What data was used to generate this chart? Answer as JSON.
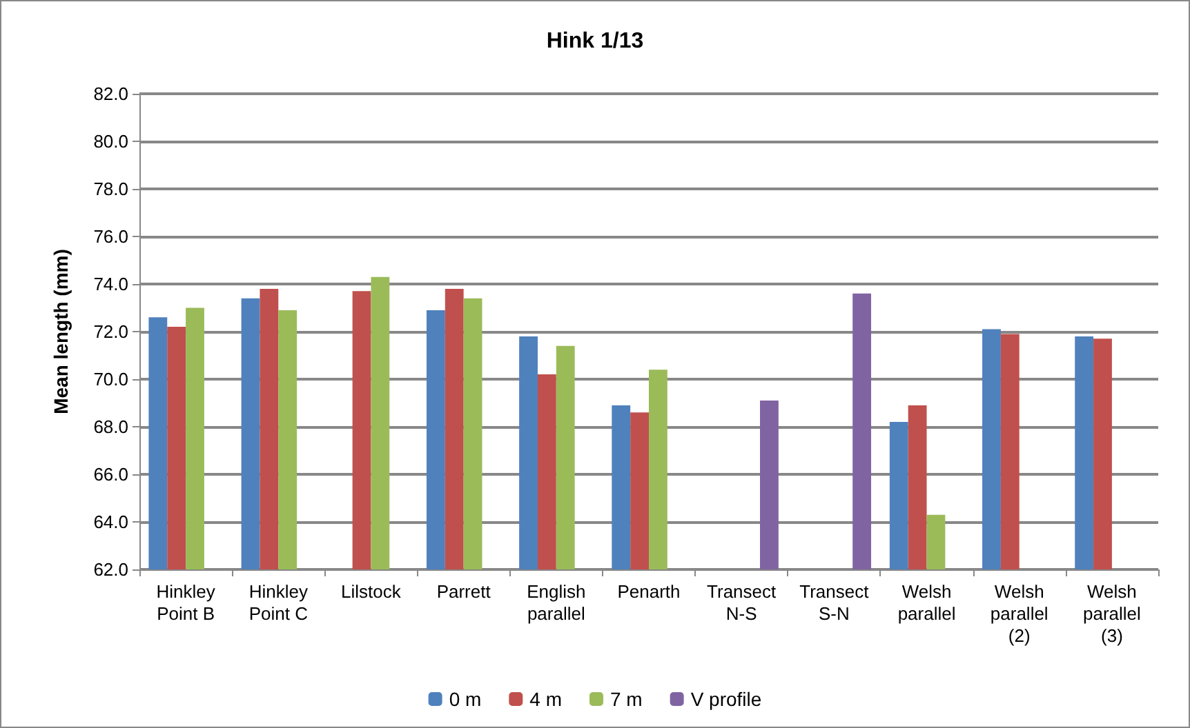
{
  "chart_data": {
    "type": "bar",
    "title": "Hink 1/13",
    "ylabel": "Mean length (mm)",
    "categories": [
      "Hinkley\nPoint B",
      "Hinkley\nPoint C",
      "Lilstock",
      "Parrett",
      "English\nparallel",
      "Penarth",
      "Transect\nN-S",
      "Transect\nS-N",
      "Welsh\nparallel",
      "Welsh\nparallel\n(2)",
      "Welsh\nparallel\n(3)"
    ],
    "series": [
      {
        "name": "0 m",
        "color": "#4f81bd",
        "values": [
          72.6,
          73.4,
          null,
          72.9,
          71.8,
          68.9,
          null,
          null,
          68.2,
          72.1,
          71.8
        ]
      },
      {
        "name": "4 m",
        "color": "#c0504d",
        "values": [
          72.2,
          73.8,
          73.7,
          73.8,
          70.2,
          68.6,
          null,
          null,
          68.9,
          71.9,
          71.7
        ]
      },
      {
        "name": "7 m",
        "color": "#9bbb59",
        "values": [
          73.0,
          72.9,
          74.3,
          73.4,
          71.4,
          70.4,
          null,
          null,
          64.3,
          null,
          null
        ]
      },
      {
        "name": "V profile",
        "color": "#8064a2",
        "values": [
          null,
          null,
          null,
          null,
          null,
          null,
          69.1,
          73.6,
          null,
          null,
          null
        ]
      }
    ],
    "ylim": [
      62,
      82
    ],
    "yticks": [
      {
        "value": 62,
        "label": "62.0"
      },
      {
        "value": 64,
        "label": "64.0"
      },
      {
        "value": 66,
        "label": "66.0"
      },
      {
        "value": 68,
        "label": "68.0"
      },
      {
        "value": 70,
        "label": "70.0"
      },
      {
        "value": 72,
        "label": "72.0"
      },
      {
        "value": 74,
        "label": "74.0"
      },
      {
        "value": 76,
        "label": "76.0"
      },
      {
        "value": 78,
        "label": "78.0"
      },
      {
        "value": 80,
        "label": "80.0"
      },
      {
        "value": 82,
        "label": "82.0"
      }
    ],
    "grid": "y",
    "legend": "bottom"
  }
}
